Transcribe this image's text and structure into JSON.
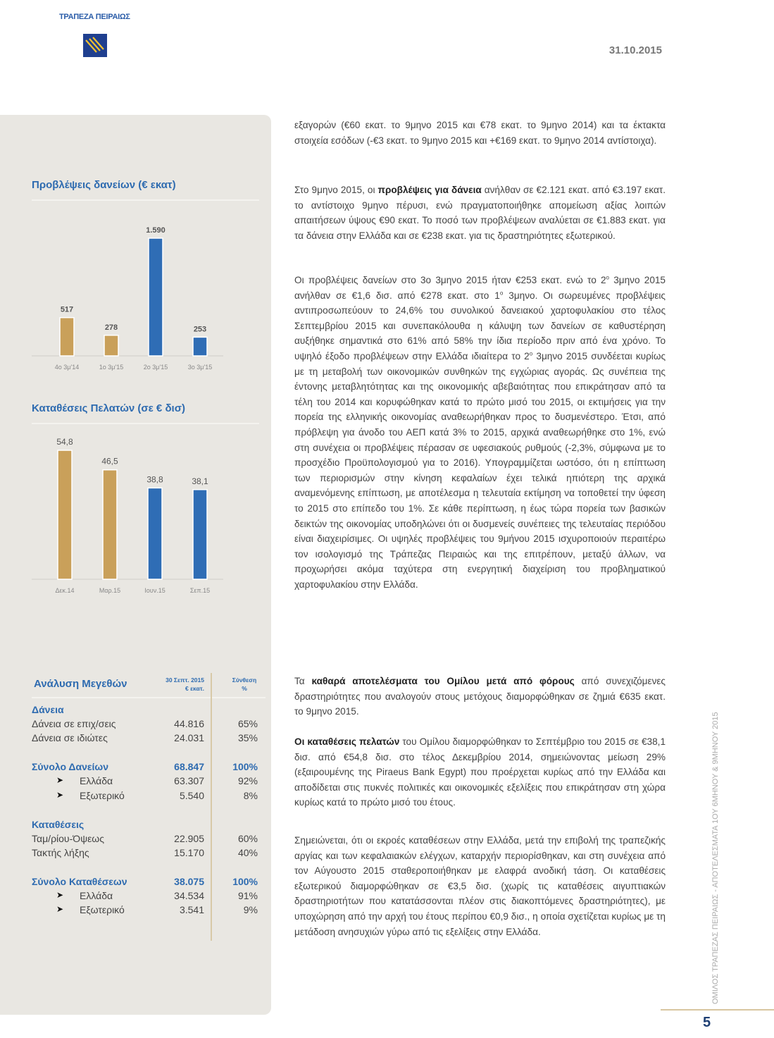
{
  "header": {
    "brand": "ΤΡΑΠΕΖΑ ΠΕΙΡΑΙΩΣ",
    "date": "31.10.2015"
  },
  "colors": {
    "brand_blue": "#2e6bb0",
    "tan": "#c9a05a",
    "bar_blue": "#2f6db5",
    "panel": "#e9e7e2"
  },
  "chart_data": [
    {
      "type": "bar",
      "title": "Προβλέψεις δανείων  (€ εκατ)",
      "categories": [
        "4ο 3μ'14",
        "1ο 3μ'15",
        "2ο 3μ'15",
        "3ο 3μ'15"
      ],
      "values": [
        517,
        278,
        1590,
        253
      ],
      "labels": [
        "517",
        "278",
        "1.590",
        "253"
      ],
      "bar_colors": [
        "#c9a05a",
        "#c9a05a",
        "#2f6db5",
        "#2f6db5"
      ],
      "ylim": [
        0,
        1700
      ],
      "grid": false
    },
    {
      "type": "bar",
      "title": "Καταθέσεις Πελατών (σε € δισ)",
      "categories": [
        "Δεκ.14",
        "Μαρ.15",
        "Ιουν.15",
        "Σεπ.15"
      ],
      "values": [
        54.8,
        46.5,
        38.8,
        38.1
      ],
      "labels": [
        "54,8",
        "46,5",
        "38,8",
        "38,1"
      ],
      "bar_colors": [
        "#c9a05a",
        "#c9a05a",
        "#2f6db5",
        "#2f6db5"
      ],
      "ylim": [
        0,
        60
      ],
      "grid": false
    }
  ],
  "table": {
    "title": "Ανάλυση Μεγεθών",
    "col1": [
      "30 Σεπτ. 2015",
      "€ εκατ."
    ],
    "col2": [
      "Σύνθεση",
      "%"
    ],
    "rows": [
      {
        "label": "Δάνεια",
        "kind": "head"
      },
      {
        "label": "Δάνεια σε επιχ/σεις",
        "value": "44.816",
        "pct": "65%"
      },
      {
        "label": "Δάνεια σε ιδιώτες",
        "value": "24.031",
        "pct": "35%"
      },
      {
        "label": "Σύνολο Δανείων",
        "value": "68.847",
        "pct": "100%",
        "kind": "total"
      },
      {
        "label": "Ελλάδα",
        "value": "63.307",
        "pct": "92%",
        "kind": "sub"
      },
      {
        "label": "Εξωτερικό",
        "value": "5.540",
        "pct": "8%",
        "kind": "sub"
      },
      {
        "label": "Καταθέσεις",
        "kind": "head"
      },
      {
        "label": "Ταμ/ρίου-Όψεως",
        "value": "22.905",
        "pct": "60%"
      },
      {
        "label": "Τακτής λήξης",
        "value": "15.170",
        "pct": "40%"
      },
      {
        "label": "Σύνολο Καταθέσεων",
        "value": "38.075",
        "pct": "100%",
        "kind": "total"
      },
      {
        "label": "Ελλάδα",
        "value": "34.534",
        "pct": "91%",
        "kind": "sub"
      },
      {
        "label": "Εξωτερικό",
        "value": "3.541",
        "pct": "9%",
        "kind": "sub"
      }
    ]
  },
  "paragraphs": [
    [
      {
        "t": "εξαγορών (€60 εκατ. το 9μηνο 2015 και €78 εκατ. το 9μηνο 2014) και τα έκτακτα στοιχεία εσόδων (-€3 εκατ. το 9μηνο 2015 και +€169 εκατ. το 9μηνο 2014 αντίστοιχα)."
      }
    ],
    [
      {
        "t": "Στο 9μηνο 2015, οι "
      },
      {
        "t": "προβλέψεις για δάνεια",
        "b": true
      },
      {
        "t": " ανήλθαν σε €2.121 εκατ. από €3.197 εκατ. το αντίστοιχο 9μηνο πέρυσι, ενώ πραγματοποιήθηκε απομείωση αξίας λοιπών απαιτήσεων ύψους €90 εκατ. Το ποσό των προβλέψεων αναλύεται σε €1.883 εκατ. για τα δάνεια στην Ελλάδα και σε €238 εκατ. για τις δραστηριότητες εξωτερικού."
      }
    ],
    [
      {
        "t": "Οι προβλέψεις δανείων στο 3ο 3μηνο 2015 ήταν €253 εκατ. ενώ το 2"
      },
      {
        "t": "ο",
        "s": true
      },
      {
        "t": " 3μηνο 2015 ανήλθαν σε €1,6 δισ. από €278 εκατ. στο 1"
      },
      {
        "t": "ο",
        "s": true
      },
      {
        "t": " 3μηνο. Οι σωρευμένες προβλέψεις αντιπροσωπεύουν το 24,6% του συνολικού δανειακού χαρτοφυλακίου στο τέλος Σεπτεμβρίου 2015 και συνεπακόλουθα η κάλυψη των δανείων σε καθυστέρηση αυξήθηκε σημαντικά στο 61% από 58% την ίδια περίοδο πριν από ένα χρόνο. Το υψηλό έξοδο προβλέψεων στην Ελλάδα ιδιαίτερα το 2"
      },
      {
        "t": "ο",
        "s": true
      },
      {
        "t": " 3μηνο 2015 συνδέεται κυρίως με τη μεταβολή των οικονομικών συνθηκών της εγχώριας αγοράς. Ως συνέπεια της έντονης μεταβλητότητας και της οικονομικής αβεβαιότητας που επικράτησαν από τα τέλη του 2014 και κορυφώθηκαν κατά το πρώτο μισό του 2015, οι εκτιμήσεις για την πορεία της ελληνικής οικονομίας αναθεωρήθηκαν προς το δυσμενέστερο. Έτσι, από πρόβλεψη για άνοδο του ΑΕΠ κατά 3% το 2015, αρχικά αναθεωρήθηκε στο 1%, ενώ στη συνέχεια οι προβλέψεις πέρασαν σε υφεσιακούς ρυθμούς (-2,3%, σύμφωνα με το προσχέδιο Προϋπολογισμού για το 2016). Υπογραμμίζεται ωστόσο, ότι η επίπτωση των περιορισμών στην κίνηση κεφαλαίων έχει τελικά ηπιότερη της αρχικά αναμενόμενης επίπτωση, με αποτέλεσμα η τελευταία εκτίμηση να τοποθετεί την ύφεση το 2015 στο επίπεδο του 1%. Σε κάθε περίπτωση, η έως τώρα πορεία των βασικών δεικτών της οικονομίας υποδηλώνει ότι οι δυσμενείς συνέπειες της τελευταίας περιόδου είναι διαχειρίσιμες. Οι υψηλές προβλέψεις του 9μήνου 2015 ισχυροποιούν περαιτέρω τον ισολογισμό της Τράπεζας Πειραιώς και της επιτρέπουν, μεταξύ άλλων, να προχωρήσει ακόμα ταχύτερα στη ενεργητική διαχείριση του προβληματικού χαρτοφυλακίου στην Ελλάδα."
      }
    ],
    [
      {
        "t": "Τα "
      },
      {
        "t": "καθαρά αποτελέσματα του Ομίλου μετά από φόρους",
        "b": true
      },
      {
        "t": " από συνεχιζόμενες δραστηριότητες που αναλογούν στους μετόχους διαμορφώθηκαν σε ζημιά €635 εκατ. το 9μηνο 2015."
      }
    ],
    [
      {
        "t": " "
      },
      {
        "t": "Οι καταθέσεις πελατών",
        "b": true
      },
      {
        "t": " του Ομίλου διαμορφώθηκαν το Σεπτέμβριο του 2015 σε €38,1 δισ. από €54,8 δισ. στο τέλος Δεκεμβρίου 2014, σημειώνοντας μείωση 29% (εξαιρουμένης της Piraeus Bank Egypt) που προέρχεται κυρίως από την Ελλάδα και αποδίδεται στις πυκνές πολιτικές και οικονομικές εξελίξεις που επικράτησαν στη χώρα κυρίως κατά το πρώτο μισό του έτους."
      }
    ],
    [
      {
        "t": "Σημειώνεται, ότι οι εκροές καταθέσεων στην Ελλάδα, μετά την επιβολή της τραπεζικής αργίας και των κεφαλαιακών ελέγχων, καταρχήν περιορίσθηκαν, και στη συνέχεια από τον Αύγουστο 2015 σταθεροποιήθηκαν με ελαφρά ανοδική τάση. Οι καταθέσεις εξωτερικού διαμορφώθηκαν σε €3,5 δισ. (χωρίς τις καταθέσεις αιγυπτιακών δραστηριοτήτων που κατατάσσονται πλέον στις διακοπτόμενες δραστηριότητες), με υποχώρηση από την αρχή του έτους περίπου €0,9 δισ., η οποία σχετίζεται κυρίως με τη μετάδοση ανησυχιών γύρω από τις εξελίξεις στην Ελλάδα."
      }
    ]
  ],
  "footer": {
    "side_text": "ΟΜΙΛΟΣ ΤΡΑΠΕΖΑΣ ΠΕΙΡΑΙΩΣ - ΑΠΟΤΕΛΕΣΜΑΤΑ 1ΟΥ 6ΜΗΝΟΥ & 9ΜΗΝΟΥ 2015",
    "page_number": "5"
  }
}
